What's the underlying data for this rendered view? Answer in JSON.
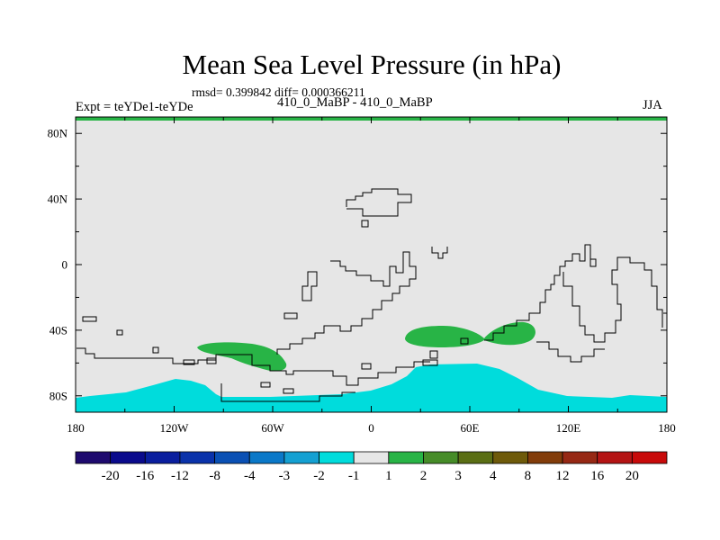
{
  "header": {
    "title": "Mean Sea Level Pressure (in hPa)",
    "stats": "rmsd= 0.399842 diff= 0.000366211",
    "experiment": "Expt = teYDe1-teYDe",
    "case": "410_0_MaBP - 410_0_MaBP",
    "season": "JJA"
  },
  "chart_data": {
    "type": "heatmap",
    "title": "Mean Sea Level Pressure (in hPa)",
    "map_projection": "cylindrical equidistant",
    "x_ticks": [
      "180",
      "120W",
      "60W",
      "0",
      "60E",
      "120E",
      "180"
    ],
    "x_tick_values": [
      -180,
      -120,
      -60,
      0,
      60,
      120,
      180
    ],
    "y_ticks": [
      "80N",
      "40N",
      "0",
      "40S",
      "80S"
    ],
    "y_tick_values": [
      80,
      40,
      0,
      -40,
      -80
    ],
    "xlim": [
      -180,
      180
    ],
    "ylim": [
      -90,
      90
    ],
    "colorbar": {
      "labels": [
        "-20",
        "-16",
        "-12",
        "-8",
        "-4",
        "-3",
        "-2",
        "-1",
        "1",
        "2",
        "3",
        "4",
        "8",
        "12",
        "16",
        "20"
      ],
      "colors": [
        "#1e0a6e",
        "#0a0a8c",
        "#0a1e9e",
        "#0a32aa",
        "#0a50b4",
        "#0a78c8",
        "#14a0d2",
        "#00dcdc",
        "#e6e6e6",
        "#28b446",
        "#468c28",
        "#5a6e14",
        "#6e5a0a",
        "#823c0a",
        "#962814",
        "#b41414",
        "#c80a0a"
      ]
    },
    "regions": [
      {
        "name": "antarctic cyan band",
        "value_range": "-2 to -1",
        "color": "#00dcdc",
        "lon_range": [
          -180,
          180
        ],
        "lat_range": [
          -90,
          -57
        ]
      },
      {
        "name": "south pacific green blob",
        "value_range": "1 to 2",
        "color": "#28b446",
        "lon_range": [
          -105,
          -50
        ],
        "lat_range": [
          -63,
          -47
        ]
      },
      {
        "name": "south indian green blob",
        "value_range": "1 to 2",
        "color": "#28b446",
        "lon_range": [
          20,
          105
        ],
        "lat_range": [
          -51,
          -37
        ]
      }
    ],
    "background_color": "#e6e6e6",
    "top_band_color": "#28b446"
  }
}
